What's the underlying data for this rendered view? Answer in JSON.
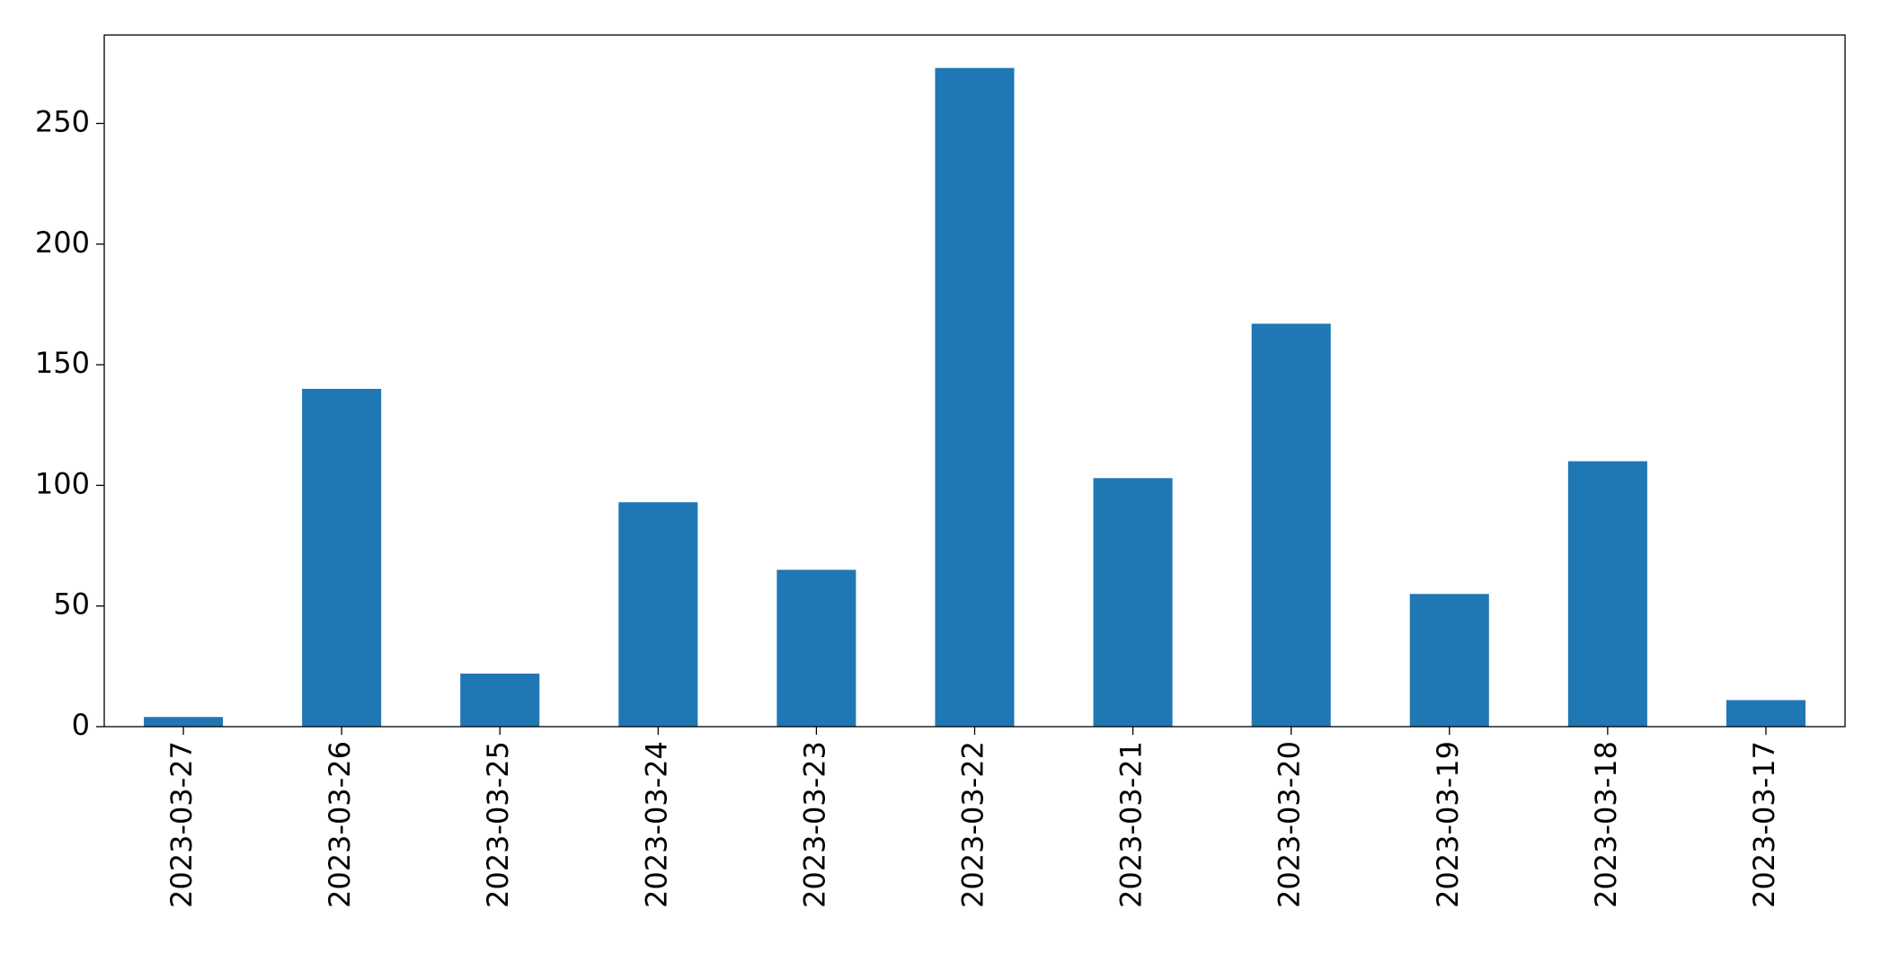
{
  "chart_data": {
    "type": "bar",
    "categories": [
      "2023-03-27",
      "2023-03-26",
      "2023-03-25",
      "2023-03-24",
      "2023-03-23",
      "2023-03-22",
      "2023-03-21",
      "2023-03-20",
      "2023-03-19",
      "2023-03-18",
      "2023-03-17"
    ],
    "values": [
      4,
      140,
      22,
      93,
      65,
      273,
      103,
      167,
      55,
      110,
      11
    ],
    "color": "#1f77b4",
    "ylim": [
      0,
      286.65
    ],
    "yticks": [
      0,
      50,
      100,
      150,
      200,
      250
    ],
    "grid": false
  }
}
